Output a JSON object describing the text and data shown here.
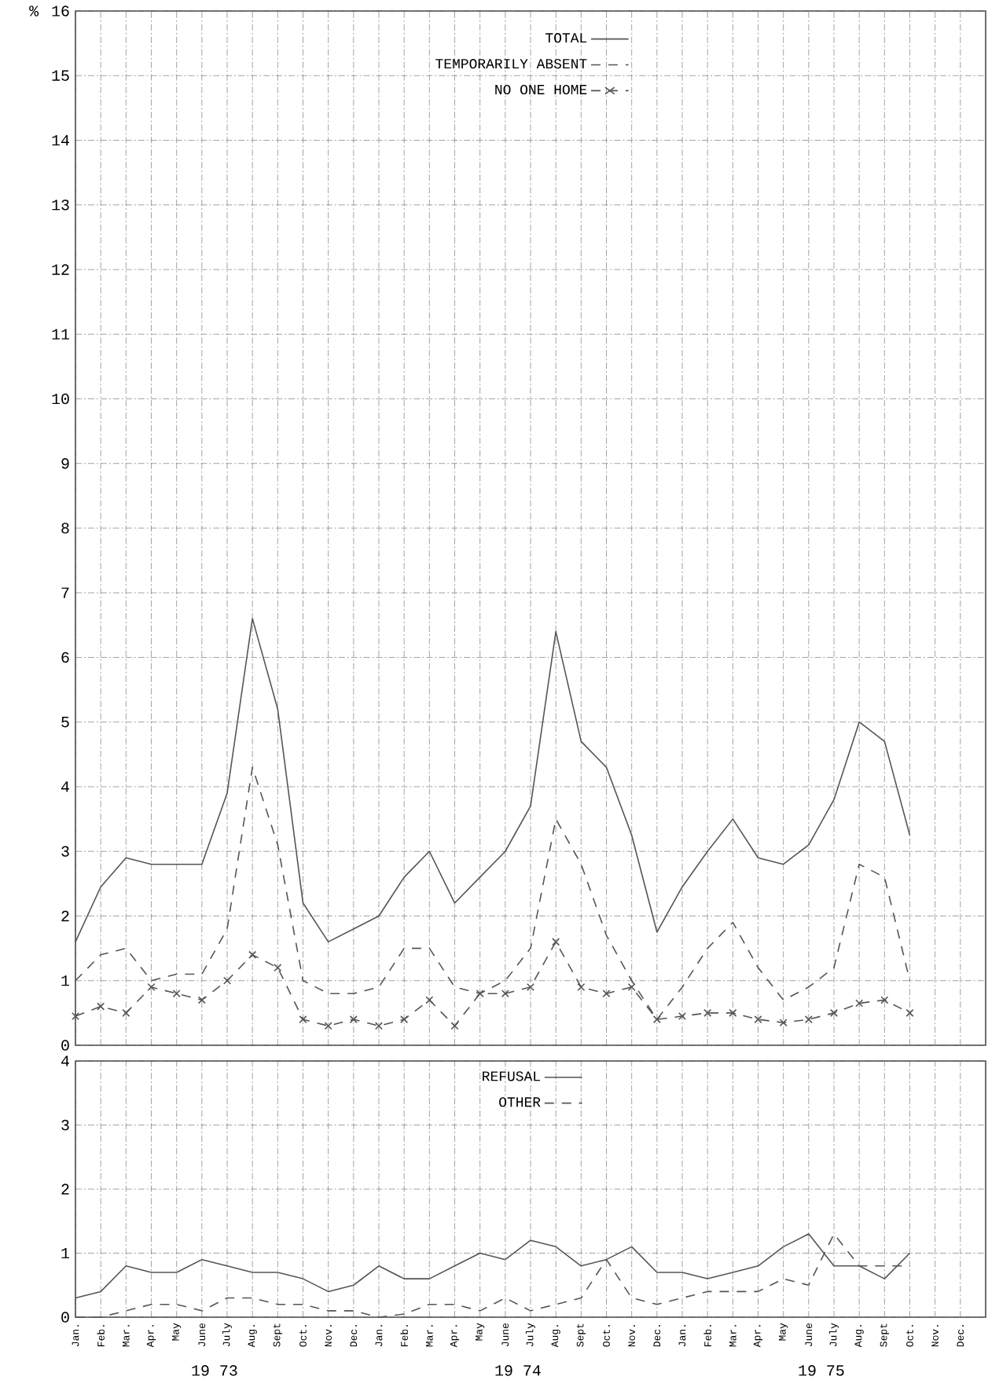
{
  "chart_data": [
    {
      "type": "line",
      "ylabel": "%",
      "ylim": [
        0,
        16
      ],
      "yticks": [
        0,
        1,
        2,
        3,
        4,
        5,
        6,
        7,
        8,
        9,
        10,
        11,
        12,
        13,
        14,
        15,
        16
      ],
      "grid": true,
      "legend": "top",
      "tick_labels": "y",
      "series": [
        {
          "name": "TOTAL",
          "color": "#555555",
          "line_style": "solid",
          "marker": "none",
          "values": [
            1.6,
            2.45,
            2.9,
            2.8,
            2.8,
            2.8,
            3.9,
            6.6,
            5.2,
            2.2,
            1.6,
            1.8,
            2.0,
            2.6,
            3.0,
            2.2,
            2.6,
            3.0,
            3.7,
            6.4,
            4.7,
            4.3,
            3.25,
            1.75,
            2.45,
            3.0,
            3.5,
            2.9,
            2.8,
            3.1,
            3.8,
            5.0,
            4.7,
            3.25,
            null,
            null
          ]
        },
        {
          "name": "TEMPORARILY ABSENT",
          "color": "#555555",
          "line_style": "dashed",
          "marker": "none",
          "values": [
            1.0,
            1.4,
            1.5,
            1.0,
            1.1,
            1.1,
            1.8,
            4.3,
            3.1,
            1.0,
            0.8,
            0.8,
            0.9,
            1.5,
            1.5,
            0.9,
            0.8,
            1.0,
            1.5,
            3.5,
            2.8,
            1.7,
            1.0,
            0.4,
            0.9,
            1.5,
            1.9,
            1.2,
            0.7,
            0.9,
            1.2,
            2.8,
            2.6,
            1.0,
            null,
            null
          ]
        },
        {
          "name": "NO ONE HOME",
          "color": "#555555",
          "line_style": "dashed",
          "marker": "cross",
          "values": [
            0.45,
            0.6,
            0.5,
            0.9,
            0.8,
            0.7,
            1.0,
            1.4,
            1.2,
            0.4,
            0.3,
            0.4,
            0.3,
            0.4,
            0.7,
            0.3,
            0.8,
            0.8,
            0.9,
            1.6,
            0.9,
            0.8,
            0.9,
            0.4,
            0.45,
            0.5,
            0.5,
            0.4,
            0.35,
            0.4,
            0.5,
            0.65,
            0.7,
            0.5,
            null,
            null
          ]
        }
      ]
    },
    {
      "type": "line",
      "ylim": [
        0,
        4
      ],
      "yticks": [
        0,
        1,
        2,
        3,
        4
      ],
      "grid": true,
      "legend": "top",
      "categories": [
        "Jan.",
        "Feb.",
        "Mar.",
        "Apr.",
        "May",
        "June",
        "July",
        "Aug.",
        "Sept",
        "Oct.",
        "Nov.",
        "Dec.",
        "Jan.",
        "Feb.",
        "Mar.",
        "Apr.",
        "May",
        "June",
        "July",
        "Aug.",
        "Sept",
        "Oct.",
        "Nov.",
        "Dec.",
        "Jan.",
        "Feb.",
        "Mar.",
        "Apr.",
        "May",
        "June",
        "July",
        "Aug.",
        "Sept",
        "Oct.",
        "Nov.",
        "Dec."
      ],
      "annotations": [
        "19 73",
        "19 74",
        "19 75"
      ],
      "series": [
        {
          "name": "REFUSAL",
          "color": "#555555",
          "line_style": "solid",
          "marker": "none",
          "values": [
            0.3,
            0.4,
            0.8,
            0.7,
            0.7,
            0.9,
            0.8,
            0.7,
            0.7,
            0.6,
            0.4,
            0.5,
            0.8,
            0.6,
            0.6,
            0.8,
            1.0,
            0.9,
            1.2,
            1.1,
            0.8,
            0.9,
            1.1,
            0.7,
            0.7,
            0.6,
            0.7,
            0.8,
            1.1,
            1.3,
            0.8,
            0.8,
            0.6,
            1.0,
            null,
            null
          ]
        },
        {
          "name": "OTHER",
          "color": "#555555",
          "line_style": "dashed",
          "marker": "none",
          "values": [
            0,
            0,
            0.1,
            0.2,
            0.2,
            0.1,
            0.3,
            0.3,
            0.2,
            0.2,
            0.1,
            0.1,
            0,
            0.05,
            0.2,
            0.2,
            0.1,
            0.3,
            0.1,
            0.2,
            0.3,
            0.9,
            0.3,
            0.2,
            0.3,
            0.4,
            0.4,
            0.4,
            0.6,
            0.5,
            1.3,
            0.8,
            0.8,
            0.8,
            null,
            null
          ]
        }
      ]
    }
  ]
}
